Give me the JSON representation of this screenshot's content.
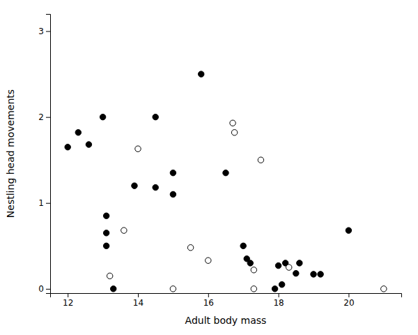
{
  "chart_data": {
    "type": "scatter",
    "xlabel": "Adult body mass",
    "ylabel": "Nestling head movements",
    "series": [
      {
        "x": [
          12.0,
          12.3,
          12.6,
          13.0,
          13.1,
          13.1,
          13.1,
          13.3,
          13.9,
          14.5,
          14.5,
          15.0,
          15.0,
          15.8,
          16.5,
          17.0,
          17.1,
          17.2,
          17.9,
          18.0,
          18.1,
          18.2,
          18.5,
          18.6,
          19.0,
          19.2,
          20.0
        ],
        "values": [
          1.65,
          1.82,
          1.68,
          2.0,
          0.85,
          0.65,
          0.5,
          0.0,
          1.2,
          2.0,
          1.18,
          1.35,
          1.1,
          2.5,
          1.35,
          0.5,
          0.35,
          0.3,
          0.0,
          0.27,
          0.05,
          0.3,
          0.18,
          0.3,
          0.17,
          0.17,
          0.68
        ],
        "color": "#000000",
        "marker": "circle"
      },
      {
        "x": [
          13.2,
          13.6,
          14.0,
          15.0,
          15.5,
          16.0,
          16.7,
          16.75,
          17.3,
          17.3,
          17.5,
          18.3,
          21.0
        ],
        "values": [
          0.15,
          0.68,
          1.63,
          0.0,
          0.48,
          0.33,
          1.93,
          1.82,
          0.22,
          0.0,
          1.5,
          0.25,
          0.0
        ],
        "color": "#ffffff",
        "marker": "circle"
      }
    ],
    "xlim": [
      11.5,
      21.5
    ],
    "ylim": [
      -0.05,
      3.2
    ],
    "xticks": [
      12,
      14,
      16,
      18,
      20
    ],
    "yticks": [
      0,
      1,
      2,
      3
    ],
    "grid": false
  }
}
